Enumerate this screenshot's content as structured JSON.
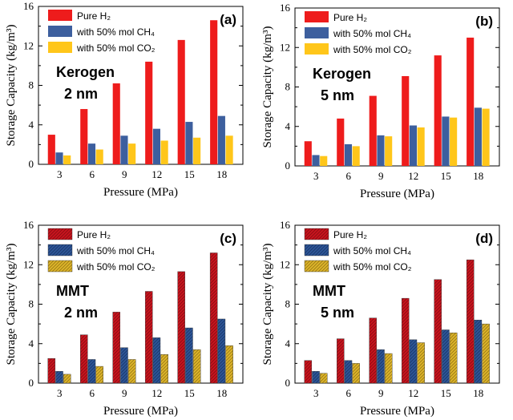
{
  "colors": {
    "pure": "#ee1c1c",
    "ch4": "#3d5f9e",
    "co2": "#ffc61a",
    "pure_hatch_bg": "#c8141e",
    "ch4_hatch_bg": "#2d5597",
    "co2_hatch_bg": "#dcb42a"
  },
  "chart_data": [
    {
      "type": "bar",
      "panel": "(a)",
      "annotation": [
        "Kerogen",
        "2 nm"
      ],
      "style": "solid",
      "categories": [
        "3",
        "6",
        "9",
        "12",
        "15",
        "18"
      ],
      "xlabel": "Pressure (MPa)",
      "ylabel": "Storage Capacity (kg/m³)",
      "ylim": [
        0,
        16
      ],
      "yticks": [
        "0",
        "4",
        "8",
        "12",
        "16"
      ],
      "legend_position": "top-left",
      "series": [
        {
          "name": "Pure H₂",
          "color_key": "pure",
          "values": [
            3.0,
            5.6,
            8.2,
            10.4,
            12.6,
            14.6
          ]
        },
        {
          "name": "with 50% mol CH₄",
          "color_key": "ch4",
          "values": [
            1.2,
            2.1,
            2.9,
            3.6,
            4.3,
            4.9
          ]
        },
        {
          "name": "with 50% mol CO₂",
          "color_key": "co2",
          "values": [
            0.9,
            1.5,
            2.1,
            2.4,
            2.7,
            2.9
          ]
        }
      ]
    },
    {
      "type": "bar",
      "panel": "(b)",
      "annotation": [
        "Kerogen",
        "5 nm"
      ],
      "style": "solid",
      "categories": [
        "3",
        "6",
        "9",
        "12",
        "15",
        "18"
      ],
      "xlabel": "Pressure (MPa)",
      "ylabel": "Storage Capacity (kg/m³)",
      "ylim": [
        0,
        16
      ],
      "yticks": [
        "0",
        "4",
        "8",
        "12",
        "16"
      ],
      "legend_position": "top-left",
      "series": [
        {
          "name": "Pure H₂",
          "color_key": "pure",
          "values": [
            2.5,
            4.8,
            7.1,
            9.1,
            11.2,
            13.0
          ]
        },
        {
          "name": "with 50% mol CH₄",
          "color_key": "ch4",
          "values": [
            1.1,
            2.2,
            3.1,
            4.1,
            5.0,
            5.9
          ]
        },
        {
          "name": "with 50% mol CO₂",
          "color_key": "co2",
          "values": [
            1.0,
            2.0,
            3.0,
            3.9,
            4.9,
            5.8
          ]
        }
      ]
    },
    {
      "type": "bar",
      "panel": "(c)",
      "annotation": [
        "MMT",
        "2 nm"
      ],
      "style": "hatched",
      "categories": [
        "3",
        "6",
        "9",
        "12",
        "15",
        "18"
      ],
      "xlabel": "Pressure (MPa)",
      "ylabel": "Storage Capacity (kg/m³)",
      "ylim": [
        0,
        16
      ],
      "yticks": [
        "0",
        "4",
        "8",
        "12",
        "16"
      ],
      "legend_position": "top-left",
      "series": [
        {
          "name": "Pure H₂",
          "color_key": "pure_hatch_bg",
          "values": [
            2.5,
            4.9,
            7.2,
            9.3,
            11.3,
            13.2
          ]
        },
        {
          "name": "with 50% mol CH₄",
          "color_key": "ch4_hatch_bg",
          "values": [
            1.2,
            2.4,
            3.6,
            4.6,
            5.6,
            6.5
          ]
        },
        {
          "name": "with 50% mol CO₂",
          "color_key": "co2_hatch_bg",
          "values": [
            0.9,
            1.7,
            2.4,
            2.9,
            3.4,
            3.8
          ]
        }
      ]
    },
    {
      "type": "bar",
      "panel": "(d)",
      "annotation": [
        "MMT",
        "5 nm"
      ],
      "style": "hatched",
      "categories": [
        "3",
        "6",
        "9",
        "12",
        "15",
        "18"
      ],
      "xlabel": "Pressure (MPa)",
      "ylabel": "Storage Capacity (kg/m³)",
      "ylim": [
        0,
        16
      ],
      "yticks": [
        "0",
        "4",
        "8",
        "12",
        "16"
      ],
      "legend_position": "top-left",
      "series": [
        {
          "name": "Pure H₂",
          "color_key": "pure_hatch_bg",
          "values": [
            2.3,
            4.5,
            6.6,
            8.6,
            10.5,
            12.5
          ]
        },
        {
          "name": "with 50% mol CH₄",
          "color_key": "ch4_hatch_bg",
          "values": [
            1.2,
            2.3,
            3.4,
            4.4,
            5.4,
            6.4
          ]
        },
        {
          "name": "with 50% mol CO₂",
          "color_key": "co2_hatch_bg",
          "values": [
            1.0,
            2.0,
            3.0,
            4.1,
            5.1,
            6.0
          ]
        }
      ]
    }
  ]
}
